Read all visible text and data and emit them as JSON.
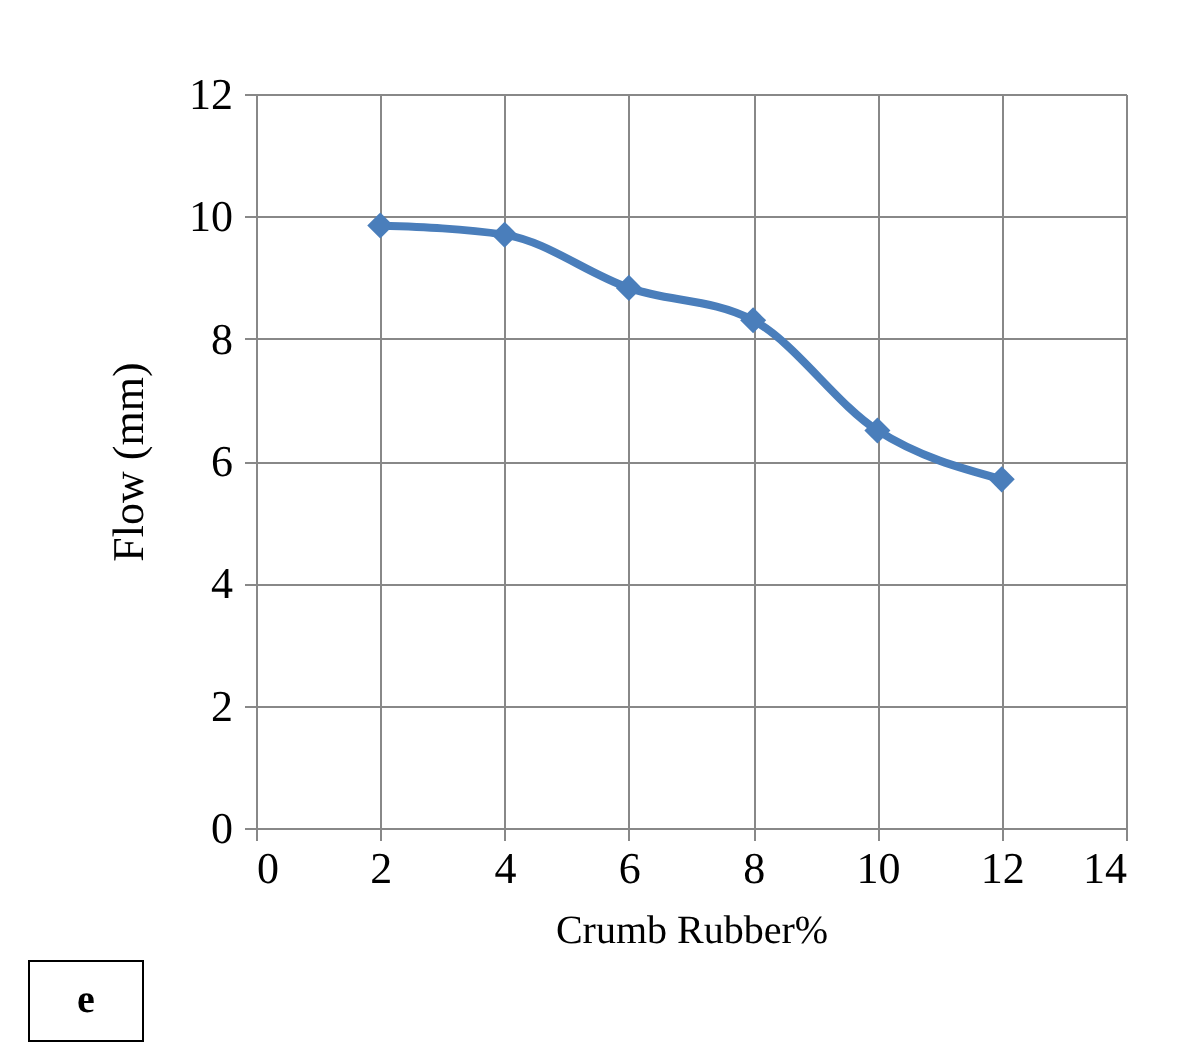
{
  "chart_data": {
    "type": "line",
    "xlabel": "Crumb Rubber%",
    "ylabel": "Flow (mm)",
    "annotations": [
      "e"
    ],
    "x": [
      2,
      4,
      6,
      8,
      10,
      12
    ],
    "series": [
      {
        "color": "#4a7ebb",
        "values": [
          9.85,
          9.7,
          8.83,
          8.3,
          6.5,
          5.7
        ]
      }
    ],
    "xlim": [
      0,
      14
    ],
    "xticks": [
      0,
      2,
      4,
      6,
      8,
      10,
      12,
      14
    ],
    "ylim": [
      0,
      12
    ],
    "yticks": [
      0,
      2,
      4,
      6,
      8,
      10,
      12
    ],
    "grid": true,
    "marker": "diamond",
    "line_style": "solid"
  }
}
